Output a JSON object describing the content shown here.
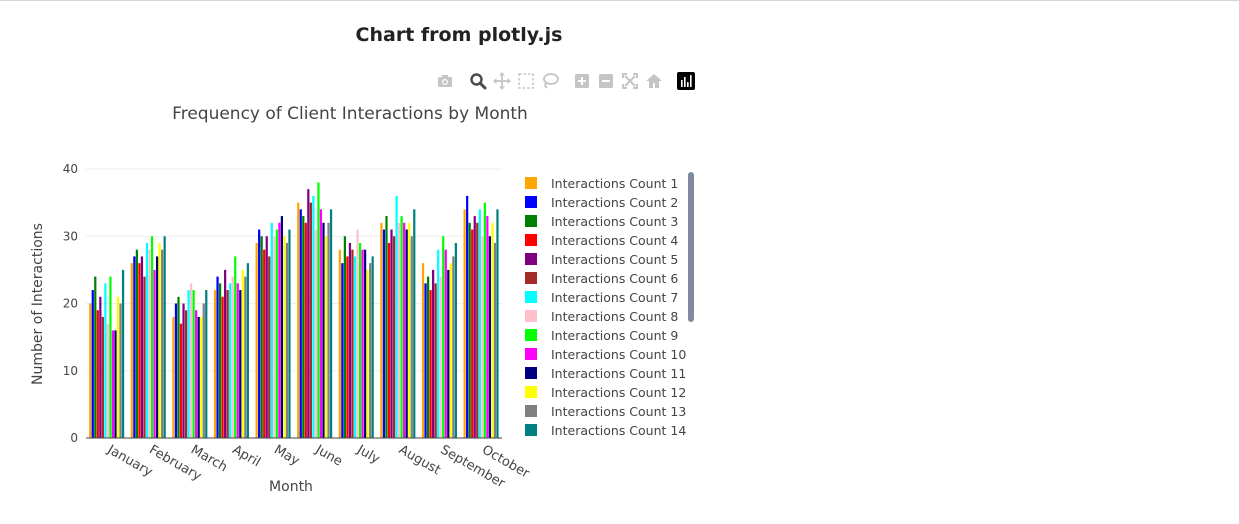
{
  "page_title": "Chart from plotly.js",
  "modebar": {
    "buttons": [
      {
        "id": "download",
        "icon": "camera-icon"
      },
      {
        "id": "zoom",
        "icon": "magnifier-icon"
      },
      {
        "id": "pan",
        "icon": "pan-arrows-icon"
      },
      {
        "id": "box-select",
        "icon": "box-select-icon"
      },
      {
        "id": "lasso-select",
        "icon": "lasso-icon"
      },
      {
        "id": "zoom-in",
        "icon": "plus-square-icon"
      },
      {
        "id": "zoom-out",
        "icon": "minus-square-icon"
      },
      {
        "id": "autoscale",
        "icon": "autoscale-icon"
      },
      {
        "id": "reset-axes",
        "icon": "home-icon"
      },
      {
        "id": "plotly-logo",
        "icon": "plotly-logo-icon"
      }
    ]
  },
  "chart_data": {
    "type": "bar",
    "title": "Frequency of Client Interactions by Month",
    "xlabel": "Month",
    "ylabel": "Number of Interactions",
    "ylim": [
      0,
      40
    ],
    "yticks": [
      0,
      10,
      20,
      30,
      40
    ],
    "grid": true,
    "legend_position": "right",
    "categories": [
      "January",
      "February",
      "March",
      "April",
      "May",
      "June",
      "July",
      "August",
      "September",
      "October"
    ],
    "series": [
      {
        "name": "Interactions Count 1",
        "color": "#FFA500",
        "values": [
          20,
          26,
          18,
          22,
          29,
          35,
          28,
          32,
          26,
          34
        ]
      },
      {
        "name": "Interactions Count 2",
        "color": "#0000FF",
        "values": [
          22,
          27,
          20,
          24,
          31,
          34,
          26,
          31,
          23,
          36
        ]
      },
      {
        "name": "Interactions Count 3",
        "color": "#008000",
        "values": [
          24,
          28,
          21,
          23,
          30,
          33,
          30,
          33,
          24,
          32
        ]
      },
      {
        "name": "Interactions Count 4",
        "color": "#FF0000",
        "values": [
          19,
          26,
          17,
          21,
          28,
          32,
          27,
          29,
          22,
          31
        ]
      },
      {
        "name": "Interactions Count 5",
        "color": "#800080",
        "values": [
          21,
          27,
          20,
          25,
          30,
          37,
          29,
          31,
          25,
          33
        ]
      },
      {
        "name": "Interactions Count 6",
        "color": "#A52A2A",
        "values": [
          18,
          24,
          19,
          22,
          27,
          35,
          28,
          30,
          23,
          32
        ]
      },
      {
        "name": "Interactions Count 7",
        "color": "#00FFFF",
        "values": [
          23,
          29,
          22,
          23,
          32,
          36,
          27,
          36,
          28,
          34
        ]
      },
      {
        "name": "Interactions Count 8",
        "color": "#FFC0CB",
        "values": [
          17,
          28,
          23,
          24,
          30,
          31,
          31,
          32,
          24,
          30
        ]
      },
      {
        "name": "Interactions Count 9",
        "color": "#00FF00",
        "values": [
          24,
          30,
          22,
          27,
          31,
          38,
          29,
          33,
          30,
          35
        ]
      },
      {
        "name": "Interactions Count 10",
        "color": "#FF00FF",
        "values": [
          16,
          25,
          19,
          23,
          32,
          34,
          28,
          32,
          28,
          33
        ]
      },
      {
        "name": "Interactions Count 11",
        "color": "#000080",
        "values": [
          16,
          27,
          18,
          22,
          33,
          32,
          28,
          31,
          25,
          30
        ]
      },
      {
        "name": "Interactions Count 12",
        "color": "#FFFF00",
        "values": [
          21,
          29,
          18,
          25,
          30,
          30,
          25,
          32,
          26,
          32
        ]
      },
      {
        "name": "Interactions Count 13",
        "color": "#808080",
        "values": [
          20,
          28,
          20,
          24,
          29,
          32,
          26,
          30,
          27,
          29
        ]
      },
      {
        "name": "Interactions Count 14",
        "color": "#008080",
        "values": [
          25,
          30,
          22,
          26,
          31,
          34,
          27,
          34,
          29,
          34
        ]
      }
    ]
  }
}
